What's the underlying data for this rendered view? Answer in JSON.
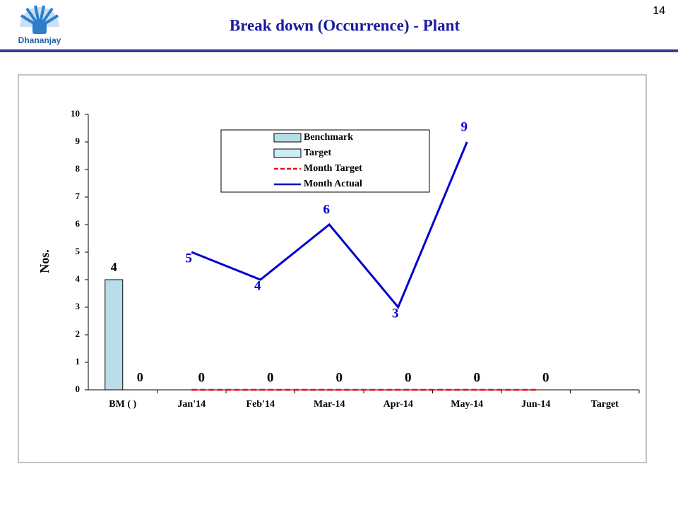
{
  "slide_number": "14",
  "logo_text": "Dhananjay",
  "chart_data": {
    "type": "bar_line",
    "title": "Break down (Occurrence) - Plant",
    "y_label": "Nos.",
    "categories": [
      "BM ( )",
      "Jan'14",
      "Feb'14",
      "Mar-14",
      "Apr-14",
      "May-14",
      "Jun-14",
      "Target"
    ],
    "series": [
      {
        "name": "Benchmark",
        "kind": "bar",
        "color": "#b7dde8",
        "values": [
          4,
          null,
          null,
          null,
          null,
          null,
          null,
          null
        ]
      },
      {
        "name": "Target",
        "kind": "bar",
        "color": "#cdeef5",
        "values": [
          0,
          null,
          null,
          null,
          null,
          null,
          null,
          null
        ]
      },
      {
        "name": "Month Target",
        "kind": "line",
        "dashed": true,
        "color": "#ff0000",
        "values": [
          null,
          0,
          0,
          0,
          0,
          0,
          0,
          null
        ]
      },
      {
        "name": "Month Actual",
        "kind": "line",
        "color": "#0000cc",
        "values": [
          null,
          5,
          4,
          6,
          3,
          9,
          null,
          null
        ]
      }
    ],
    "ylim": [
      0,
      10
    ],
    "yticks": [
      0,
      1,
      2,
      3,
      4,
      5,
      6,
      7,
      8,
      9,
      10
    ],
    "grid": false
  }
}
